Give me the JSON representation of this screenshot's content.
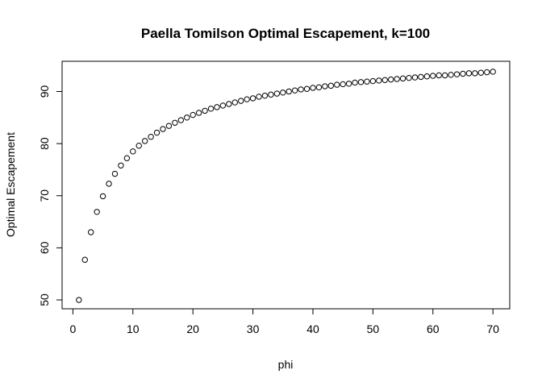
{
  "chart_data": {
    "type": "scatter",
    "title": "Paella Tomilson Optimal Escapement, k=100",
    "xlabel": "phi",
    "ylabel": "Optimal Escapement",
    "xlim": [
      -1.8,
      72.8
    ],
    "ylim": [
      48.3,
      95.8
    ],
    "xticks": [
      0,
      10,
      20,
      30,
      40,
      50,
      60,
      70
    ],
    "yticks": [
      50,
      60,
      70,
      80,
      90
    ],
    "marker": "open-circle",
    "grid": false,
    "legend": "none",
    "x": [
      1,
      2,
      3,
      4,
      5,
      6,
      7,
      8,
      9,
      10,
      11,
      12,
      13,
      14,
      15,
      16,
      17,
      18,
      19,
      20,
      21,
      22,
      23,
      24,
      25,
      26,
      27,
      28,
      29,
      30,
      31,
      32,
      33,
      34,
      35,
      36,
      37,
      38,
      39,
      40,
      41,
      42,
      43,
      44,
      45,
      46,
      47,
      48,
      49,
      50,
      51,
      52,
      53,
      54,
      55,
      56,
      57,
      58,
      59,
      60,
      61,
      62,
      63,
      64,
      65,
      66,
      67,
      68,
      69,
      70
    ],
    "y": [
      50.0,
      57.7,
      63.0,
      66.9,
      69.9,
      72.3,
      74.2,
      75.8,
      77.2,
      78.5,
      79.6,
      80.5,
      81.3,
      82.1,
      82.8,
      83.4,
      84.0,
      84.5,
      85.0,
      85.5,
      85.9,
      86.3,
      86.7,
      87.0,
      87.3,
      87.6,
      87.9,
      88.2,
      88.5,
      88.7,
      89.0,
      89.2,
      89.4,
      89.6,
      89.8,
      90.0,
      90.2,
      90.4,
      90.5,
      90.7,
      90.8,
      91.0,
      91.1,
      91.3,
      91.4,
      91.5,
      91.7,
      91.8,
      91.9,
      92.0,
      92.1,
      92.2,
      92.3,
      92.4,
      92.5,
      92.6,
      92.7,
      92.8,
      92.9,
      93.0,
      93.1,
      93.1,
      93.2,
      93.3,
      93.4,
      93.5,
      93.5,
      93.6,
      93.7,
      93.8
    ]
  }
}
